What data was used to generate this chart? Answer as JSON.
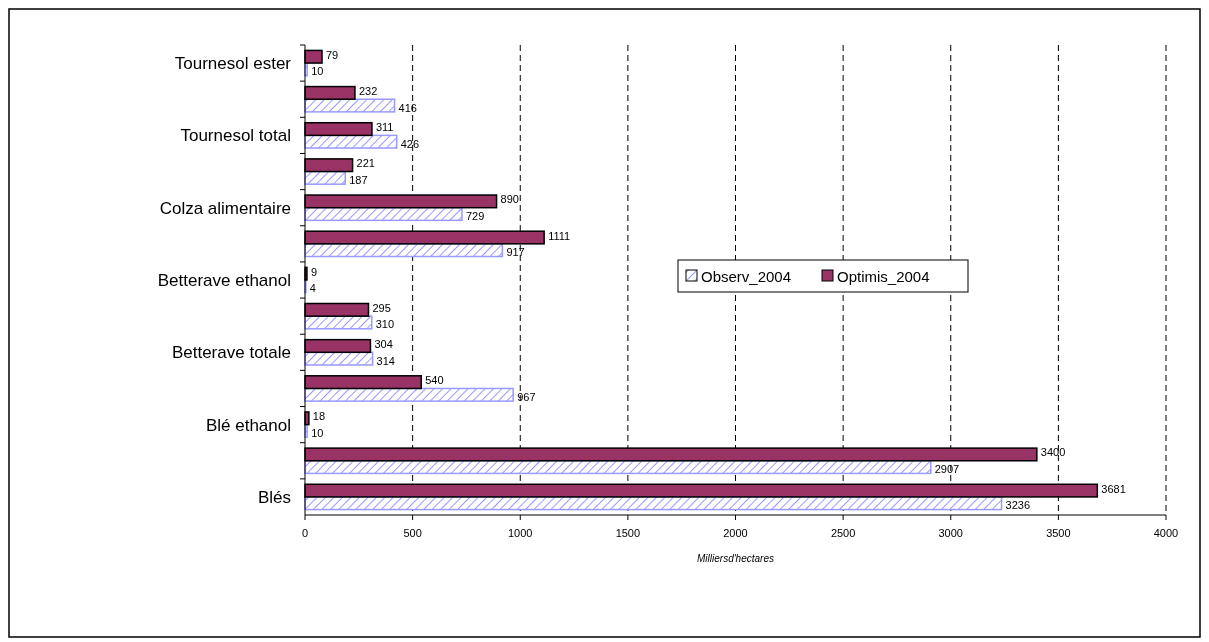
{
  "chart_data": {
    "type": "bar",
    "orientation": "horizontal",
    "xlabel": "Milliersd'hectares",
    "categories": [
      "Tournesol ester",
      null,
      "Tournesol total",
      null,
      "Colza alimentaire",
      null,
      "Betterave ethanol",
      null,
      "Betterave totale",
      null,
      "Blé ethanol",
      null,
      "Blés"
    ],
    "series": [
      {
        "name": "Observ_2004",
        "color": "#9999ff",
        "values": [
          10,
          416,
          426,
          187,
          729,
          917,
          4,
          310,
          314,
          967,
          10,
          2907,
          3236
        ]
      },
      {
        "name": "Optimis_2004",
        "color": "#993366",
        "values": [
          79,
          232,
          311,
          221,
          890,
          1111,
          9,
          295,
          304,
          540,
          18,
          3400,
          3681
        ]
      }
    ],
    "xlim": [
      0,
      4000
    ],
    "xticks": [
      0,
      500,
      1000,
      1500,
      2000,
      2500,
      3000,
      3500,
      4000
    ],
    "grid": "x",
    "legend": "right",
    "data_labels": true
  }
}
